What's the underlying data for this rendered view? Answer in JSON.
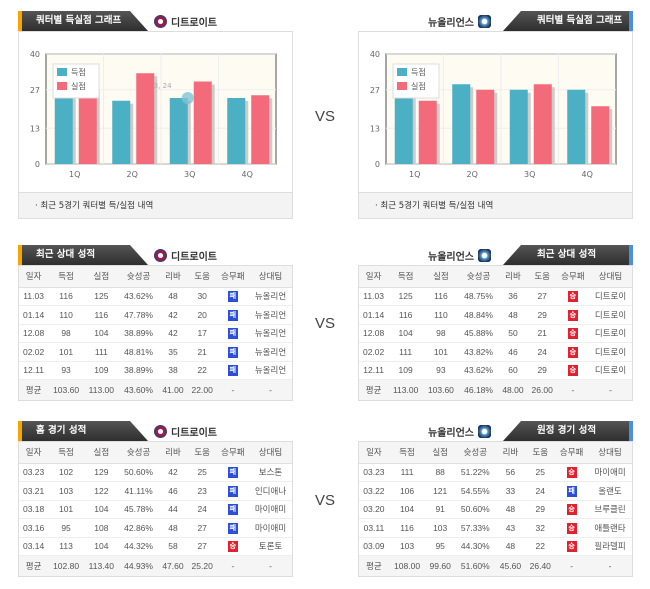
{
  "vs": "VS",
  "graph_title": "쿼터별 득실점 그래프",
  "graph_footer": "· 최근 5경기 쿼터별 득/실점 내역",
  "teams": {
    "home": "디트로이트",
    "away": "뉴올리언스"
  },
  "columns": [
    "일자",
    "득점",
    "실점",
    "슛성공",
    "리바",
    "도움",
    "승무패",
    "상대팀"
  ],
  "colors": {
    "scored": "#4bb0c4",
    "lost": "#f36b7a",
    "win": "#e3202e",
    "loss": "#2b4fd8"
  },
  "chart_data": [
    {
      "type": "bar",
      "team": "디트로이트",
      "categories": [
        "1Q",
        "2Q",
        "3Q",
        "4Q"
      ],
      "ylim": [
        0,
        40
      ],
      "yticks": [
        "0",
        "13",
        "27",
        "40"
      ],
      "legend": "top-left",
      "tooltip": "3, 24",
      "series": [
        {
          "name": "득점",
          "values": [
            27,
            23,
            24,
            24
          ]
        },
        {
          "name": "실점",
          "values": [
            28,
            33,
            30,
            25
          ]
        }
      ]
    },
    {
      "type": "bar",
      "team": "뉴올리언스",
      "categories": [
        "1Q",
        "2Q",
        "3Q",
        "4Q"
      ],
      "ylim": [
        0,
        40
      ],
      "yticks": [
        "0",
        "13",
        "27",
        "40"
      ],
      "legend": "top-left",
      "series": [
        {
          "name": "득점",
          "values": [
            26,
            29,
            27,
            27
          ]
        },
        {
          "name": "실점",
          "values": [
            23,
            27,
            29,
            21
          ]
        }
      ]
    }
  ],
  "tables": [
    {
      "title": "최근 상대 성적",
      "team": "디트로이트",
      "rows": [
        [
          "11.03",
          "116",
          "125",
          "43.62%",
          "48",
          "30",
          "패",
          "뉴올리언"
        ],
        [
          "01.14",
          "110",
          "116",
          "47.78%",
          "42",
          "20",
          "패",
          "뉴올리언"
        ],
        [
          "12.08",
          "98",
          "104",
          "38.89%",
          "42",
          "17",
          "패",
          "뉴올리언"
        ],
        [
          "02.02",
          "101",
          "111",
          "48.81%",
          "35",
          "21",
          "패",
          "뉴올리언"
        ],
        [
          "12.11",
          "93",
          "109",
          "38.89%",
          "38",
          "22",
          "패",
          "뉴올리언"
        ]
      ],
      "avg": [
        "평균",
        "103.60",
        "113.00",
        "43.60%",
        "41.00",
        "22.00",
        "-",
        "-"
      ]
    },
    {
      "title": "최근 상대 성적",
      "team": "뉴올리언스",
      "rows": [
        [
          "11.03",
          "125",
          "116",
          "48.75%",
          "36",
          "27",
          "승",
          "디트로이"
        ],
        [
          "01.14",
          "116",
          "110",
          "48.84%",
          "48",
          "29",
          "승",
          "디트로이"
        ],
        [
          "12.08",
          "104",
          "98",
          "45.88%",
          "50",
          "21",
          "승",
          "디트로이"
        ],
        [
          "02.02",
          "111",
          "101",
          "43.82%",
          "46",
          "24",
          "승",
          "디트로이"
        ],
        [
          "12.11",
          "109",
          "93",
          "43.62%",
          "60",
          "29",
          "승",
          "디트로이"
        ]
      ],
      "avg": [
        "평균",
        "113.00",
        "103.60",
        "46.18%",
        "48.00",
        "26.00",
        "-",
        "-"
      ]
    },
    {
      "title": "홈 경기 성적",
      "team": "디트로이트",
      "rows": [
        [
          "03.23",
          "102",
          "129",
          "50.60%",
          "42",
          "25",
          "패",
          "보스톤"
        ],
        [
          "03.21",
          "103",
          "122",
          "41.11%",
          "46",
          "23",
          "패",
          "인디애나"
        ],
        [
          "03.18",
          "101",
          "104",
          "45.78%",
          "44",
          "24",
          "패",
          "마이애미"
        ],
        [
          "03.16",
          "95",
          "108",
          "42.86%",
          "48",
          "27",
          "패",
          "마이애미"
        ],
        [
          "03.14",
          "113",
          "104",
          "44.32%",
          "58",
          "27",
          "승",
          "토론토"
        ]
      ],
      "avg": [
        "평균",
        "102.80",
        "113.40",
        "44.93%",
        "47.60",
        "25.20",
        "-",
        "-"
      ]
    },
    {
      "title": "원정 경기 성적",
      "team": "뉴올리언스",
      "rows": [
        [
          "03.23",
          "111",
          "88",
          "51.22%",
          "56",
          "25",
          "승",
          "마이애미"
        ],
        [
          "03.22",
          "106",
          "121",
          "54.55%",
          "33",
          "24",
          "패",
          "올랜도"
        ],
        [
          "03.20",
          "104",
          "91",
          "50.60%",
          "48",
          "29",
          "승",
          "브루클린"
        ],
        [
          "03.11",
          "116",
          "103",
          "57.33%",
          "43",
          "32",
          "승",
          "애틀랜타"
        ],
        [
          "03.09",
          "103",
          "95",
          "44.30%",
          "48",
          "22",
          "승",
          "필라델피"
        ]
      ],
      "avg": [
        "평균",
        "108.00",
        "99.60",
        "51.60%",
        "45.60",
        "26.40",
        "-",
        "-"
      ]
    }
  ]
}
